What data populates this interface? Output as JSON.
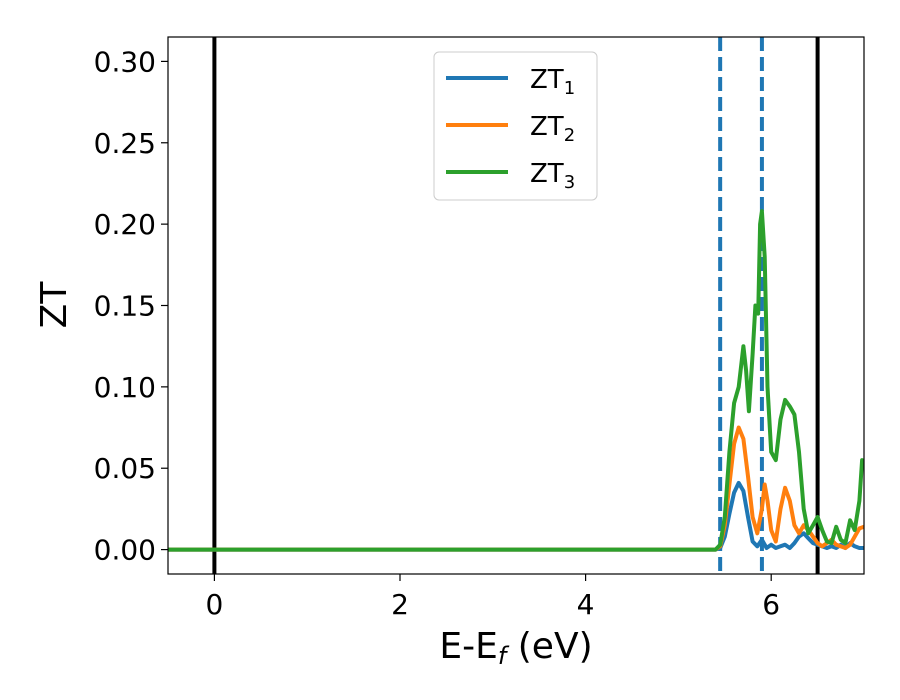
{
  "chart_data": {
    "type": "line",
    "xlabel": {
      "main": "E-E",
      "sub": "f",
      "suffix": " (eV)"
    },
    "ylabel": "ZT",
    "xlim": [
      -0.5,
      7.0
    ],
    "ylim": [
      -0.015,
      0.315
    ],
    "xticks": [
      0,
      2,
      4,
      6
    ],
    "xtick_labels": [
      "0",
      "2",
      "4",
      "6"
    ],
    "yticks": [
      0.0,
      0.05,
      0.1,
      0.15,
      0.2,
      0.25,
      0.3
    ],
    "ytick_labels": [
      "0.00",
      "0.05",
      "0.10",
      "0.15",
      "0.20",
      "0.25",
      "0.30"
    ],
    "grid": false,
    "legend_position": "top-center",
    "vlines": [
      {
        "x": 0.0,
        "style": "solid",
        "color": "#000000"
      },
      {
        "x": 6.5,
        "style": "solid",
        "color": "#000000"
      },
      {
        "x": 5.45,
        "style": "dashed",
        "color": "#1f77b4"
      },
      {
        "x": 5.9,
        "style": "dashed",
        "color": "#1f77b4"
      }
    ],
    "series": [
      {
        "name": "ZT",
        "sub": "1",
        "color": "#1f77b4",
        "points": [
          [
            -0.5,
            0
          ],
          [
            5.4,
            0
          ],
          [
            5.45,
            0.001
          ],
          [
            5.5,
            0.008
          ],
          [
            5.55,
            0.022
          ],
          [
            5.6,
            0.035
          ],
          [
            5.65,
            0.041
          ],
          [
            5.7,
            0.036
          ],
          [
            5.75,
            0.02
          ],
          [
            5.8,
            0.005
          ],
          [
            5.85,
            0.002
          ],
          [
            5.9,
            0.006
          ],
          [
            5.95,
            0.001
          ],
          [
            6.0,
            0.003
          ],
          [
            6.05,
            0.001
          ],
          [
            6.1,
            0.002
          ],
          [
            6.15,
            0.003
          ],
          [
            6.2,
            0.001
          ],
          [
            6.25,
            0.004
          ],
          [
            6.3,
            0.008
          ],
          [
            6.35,
            0.01
          ],
          [
            6.4,
            0.007
          ],
          [
            6.45,
            0.004
          ],
          [
            6.5,
            0.003
          ],
          [
            6.55,
            0.002
          ],
          [
            6.6,
            0.001
          ],
          [
            6.65,
            0.002
          ],
          [
            6.7,
            0.001
          ],
          [
            6.75,
            0.003
          ],
          [
            6.8,
            0.001
          ],
          [
            6.85,
            0.004
          ],
          [
            6.9,
            0.002
          ],
          [
            6.95,
            0.001
          ],
          [
            7.0,
            0.001
          ]
        ]
      },
      {
        "name": "ZT",
        "sub": "2",
        "color": "#ff7f0e",
        "points": [
          [
            -0.5,
            0
          ],
          [
            5.4,
            0
          ],
          [
            5.45,
            0.002
          ],
          [
            5.5,
            0.015
          ],
          [
            5.55,
            0.04
          ],
          [
            5.6,
            0.065
          ],
          [
            5.65,
            0.075
          ],
          [
            5.7,
            0.068
          ],
          [
            5.75,
            0.045
          ],
          [
            5.8,
            0.02
          ],
          [
            5.85,
            0.01
          ],
          [
            5.9,
            0.025
          ],
          [
            5.93,
            0.04
          ],
          [
            5.96,
            0.03
          ],
          [
            6.0,
            0.012
          ],
          [
            6.05,
            0.005
          ],
          [
            6.1,
            0.025
          ],
          [
            6.15,
            0.038
          ],
          [
            6.2,
            0.03
          ],
          [
            6.25,
            0.015
          ],
          [
            6.3,
            0.01
          ],
          [
            6.35,
            0.015
          ],
          [
            6.4,
            0.012
          ],
          [
            6.45,
            0.008
          ],
          [
            6.5,
            0.004
          ],
          [
            6.55,
            0.002
          ],
          [
            6.6,
            0.004
          ],
          [
            6.65,
            0.006
          ],
          [
            6.7,
            0.003
          ],
          [
            6.75,
            0.002
          ],
          [
            6.8,
            0.001
          ],
          [
            6.85,
            0.003
          ],
          [
            6.9,
            0.008
          ],
          [
            6.95,
            0.013
          ],
          [
            7.0,
            0.014
          ]
        ]
      },
      {
        "name": "ZT",
        "sub": "3",
        "color": "#2ca02c",
        "points": [
          [
            -0.5,
            0
          ],
          [
            5.4,
            0
          ],
          [
            5.45,
            0.003
          ],
          [
            5.5,
            0.02
          ],
          [
            5.55,
            0.06
          ],
          [
            5.6,
            0.09
          ],
          [
            5.65,
            0.1
          ],
          [
            5.7,
            0.125
          ],
          [
            5.73,
            0.11
          ],
          [
            5.76,
            0.085
          ],
          [
            5.8,
            0.12
          ],
          [
            5.83,
            0.15
          ],
          [
            5.86,
            0.145
          ],
          [
            5.88,
            0.2
          ],
          [
            5.9,
            0.208
          ],
          [
            5.93,
            0.18
          ],
          [
            5.96,
            0.1
          ],
          [
            6.0,
            0.06
          ],
          [
            6.05,
            0.055
          ],
          [
            6.1,
            0.08
          ],
          [
            6.15,
            0.092
          ],
          [
            6.2,
            0.088
          ],
          [
            6.25,
            0.083
          ],
          [
            6.3,
            0.06
          ],
          [
            6.35,
            0.025
          ],
          [
            6.4,
            0.01
          ],
          [
            6.45,
            0.015
          ],
          [
            6.5,
            0.02
          ],
          [
            6.55,
            0.012
          ],
          [
            6.6,
            0.005
          ],
          [
            6.65,
            0.004
          ],
          [
            6.7,
            0.014
          ],
          [
            6.75,
            0.006
          ],
          [
            6.8,
            0.004
          ],
          [
            6.85,
            0.018
          ],
          [
            6.9,
            0.012
          ],
          [
            6.95,
            0.03
          ],
          [
            6.98,
            0.055
          ],
          [
            7.0,
            0.05
          ]
        ]
      }
    ]
  }
}
